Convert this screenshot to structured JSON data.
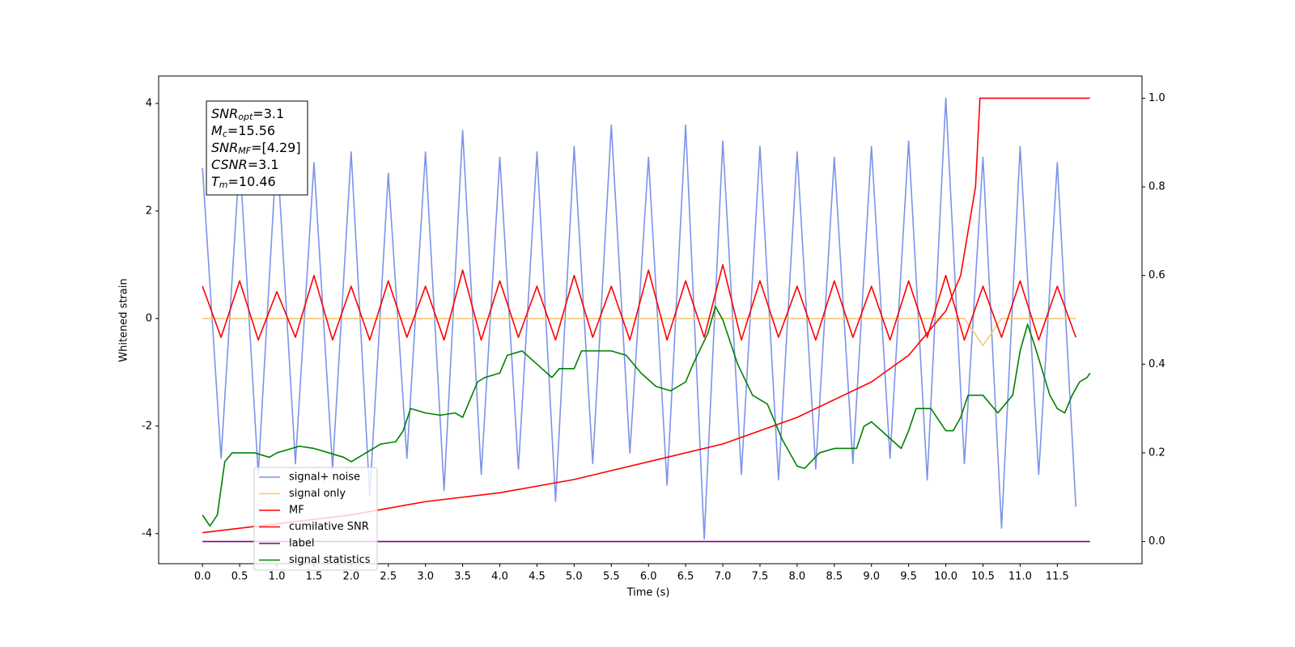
{
  "chart_data": {
    "type": "line",
    "xlabel": "Time (s)",
    "ylabel": "Whitened strain",
    "xlim": [
      -0.59,
      12.64
    ],
    "ylim": [
      -4.56,
      4.51
    ],
    "y2lim": [
      -0.05,
      1.05
    ],
    "xticks": [
      {
        "value": 0,
        "label": "0.0"
      },
      0.5,
      {
        "value": 1,
        "label": "1.0"
      },
      1.5,
      {
        "value": 2,
        "label": "2.0"
      },
      2.5,
      {
        "value": 3,
        "label": "3.0"
      },
      3.5,
      {
        "value": 4,
        "label": "4.0"
      },
      4.5,
      {
        "value": 5,
        "label": "5.0"
      },
      5.5,
      {
        "value": 6,
        "label": "6.0"
      },
      6.5,
      {
        "value": 7,
        "label": "7.0"
      },
      7.5,
      {
        "value": 8,
        "label": "8.0"
      },
      8.5,
      {
        "value": 9,
        "label": "9.0"
      },
      9.5,
      {
        "value": 10,
        "label": "10.0"
      },
      10.5,
      {
        "value": 11,
        "label": "11.0"
      },
      11.5
    ],
    "yticks": [
      4,
      2,
      0,
      -2,
      -4
    ],
    "y2ticks": [
      {
        "value": 0,
        "label": "0.0"
      },
      0.2,
      0.4,
      0.6,
      0.8,
      {
        "value": 1,
        "label": "1.0"
      }
    ],
    "legend": "lower left",
    "annotation": [
      {
        "main": "SNR",
        "sub": "opt",
        "rest": "=3.1"
      },
      {
        "main": "M",
        "sub": "c",
        "rest": "=15.56"
      },
      {
        "main": "SNR",
        "sub": "MF",
        "rest": "=[4.29]"
      },
      {
        "main": "CSNR",
        "rest": "=3.1"
      },
      {
        "main": "T",
        "sub": "m",
        "rest": "=10.46"
      }
    ],
    "x": [
      0,
      0.25,
      0.5,
      0.75,
      1,
      1.25,
      1.5,
      1.75,
      2,
      2.25,
      2.5,
      2.75,
      3,
      3.25,
      3.5,
      3.75,
      4,
      4.25,
      4.5,
      4.75,
      5,
      5.25,
      5.5,
      5.75,
      6,
      6.25,
      6.5,
      6.75,
      7,
      7.25,
      7.5,
      7.75,
      8,
      8.25,
      8.5,
      8.75,
      9,
      9.25,
      9.5,
      9.75,
      10,
      10.25,
      10.5,
      10.75,
      11,
      11.25,
      11.5,
      11.75
    ],
    "series": [
      {
        "name": "signal+ noise",
        "color": "#7b93e8",
        "values": [
          2.8,
          -2.6,
          3.0,
          -2.9,
          3.2,
          -2.7,
          2.9,
          -2.8,
          3.1,
          -3.3,
          2.7,
          -2.6,
          3.1,
          -3.2,
          3.5,
          -2.9,
          3.0,
          -2.8,
          3.1,
          -3.4,
          3.2,
          -2.7,
          3.6,
          -2.5,
          3.0,
          -3.1,
          3.6,
          -4.1,
          3.3,
          -2.9,
          3.2,
          -3.0,
          3.1,
          -2.8,
          3.0,
          -2.7,
          3.2,
          -2.6,
          3.3,
          -3.0,
          4.1,
          -2.7,
          3.0,
          -3.9,
          3.2,
          -2.9,
          2.9,
          -3.5
        ]
      },
      {
        "name": "signal only",
        "color": "#f5c77e",
        "values": [
          0,
          0,
          0,
          0,
          0,
          0,
          0,
          0,
          0,
          0,
          0,
          0,
          0,
          0,
          0,
          0,
          0,
          0,
          0,
          0,
          0,
          0,
          0,
          0,
          0,
          0,
          0,
          0,
          0,
          0,
          0,
          0,
          0,
          0,
          0,
          0,
          0,
          0,
          0,
          0,
          0,
          0,
          -0.5,
          0,
          0,
          0,
          0,
          0
        ]
      },
      {
        "name": "MF",
        "color": "#ff0000",
        "values": [
          0.6,
          -0.35,
          0.7,
          -0.4,
          0.5,
          -0.35,
          0.8,
          -0.4,
          0.6,
          -0.4,
          0.7,
          -0.35,
          0.6,
          -0.4,
          0.9,
          -0.4,
          0.7,
          -0.35,
          0.6,
          -0.4,
          0.8,
          -0.35,
          0.6,
          -0.4,
          0.9,
          -0.4,
          0.7,
          -0.35,
          1.0,
          -0.4,
          0.7,
          -0.35,
          0.6,
          -0.4,
          0.7,
          -0.35,
          0.6,
          -0.4,
          0.7,
          -0.35,
          0.8,
          -0.4,
          0.6,
          -0.35,
          0.7,
          -0.4,
          0.6,
          -0.35
        ]
      },
      {
        "name": "cumilative SNR",
        "color": "#ff0000",
        "axis": "y2",
        "x": [
          0,
          1,
          2,
          3,
          4,
          5,
          6,
          7,
          8,
          9,
          9.5,
          10,
          10.2,
          10.4,
          10.46,
          11.94
        ],
        "values": [
          0.02,
          0.04,
          0.06,
          0.09,
          0.11,
          0.14,
          0.18,
          0.22,
          0.28,
          0.36,
          0.42,
          0.52,
          0.6,
          0.8,
          1.0,
          1.0
        ]
      },
      {
        "name": "label",
        "color": "#800080",
        "axis": "y2",
        "x": [
          0,
          11.94
        ],
        "values": [
          0,
          0
        ]
      },
      {
        "name": "signal statistics",
        "color": "#008000",
        "axis": "y2",
        "x": [
          0,
          0.1,
          0.2,
          0.3,
          0.4,
          0.5,
          0.7,
          0.9,
          1.0,
          1.2,
          1.3,
          1.5,
          1.7,
          1.9,
          2.0,
          2.2,
          2.4,
          2.6,
          2.7,
          2.8,
          3.0,
          3.2,
          3.4,
          3.5,
          3.6,
          3.7,
          3.8,
          4.0,
          4.1,
          4.3,
          4.5,
          4.7,
          4.8,
          5.0,
          5.1,
          5.3,
          5.5,
          5.7,
          5.9,
          6.1,
          6.3,
          6.5,
          6.6,
          6.8,
          6.9,
          7.0,
          7.2,
          7.4,
          7.6,
          7.8,
          8.0,
          8.1,
          8.3,
          8.5,
          8.8,
          8.9,
          9.0,
          9.2,
          9.4,
          9.5,
          9.6,
          9.8,
          10.0,
          10.1,
          10.2,
          10.3,
          10.5,
          10.7,
          10.9,
          11.0,
          11.1,
          11.2,
          11.4,
          11.5,
          11.6,
          11.7,
          11.8,
          11.9,
          11.94
        ],
        "values": [
          0.06,
          0.035,
          0.06,
          0.18,
          0.2,
          0.2,
          0.2,
          0.19,
          0.2,
          0.21,
          0.215,
          0.21,
          0.2,
          0.19,
          0.18,
          0.2,
          0.22,
          0.225,
          0.25,
          0.3,
          0.29,
          0.285,
          0.29,
          0.28,
          0.32,
          0.36,
          0.37,
          0.38,
          0.42,
          0.43,
          0.4,
          0.37,
          0.39,
          0.39,
          0.43,
          0.43,
          0.43,
          0.42,
          0.38,
          0.35,
          0.34,
          0.36,
          0.4,
          0.47,
          0.53,
          0.5,
          0.4,
          0.33,
          0.31,
          0.23,
          0.17,
          0.165,
          0.2,
          0.21,
          0.21,
          0.26,
          0.27,
          0.24,
          0.21,
          0.25,
          0.3,
          0.3,
          0.25,
          0.25,
          0.28,
          0.33,
          0.33,
          0.29,
          0.33,
          0.43,
          0.49,
          0.44,
          0.33,
          0.3,
          0.29,
          0.33,
          0.36,
          0.37,
          0.38
        ]
      }
    ]
  }
}
